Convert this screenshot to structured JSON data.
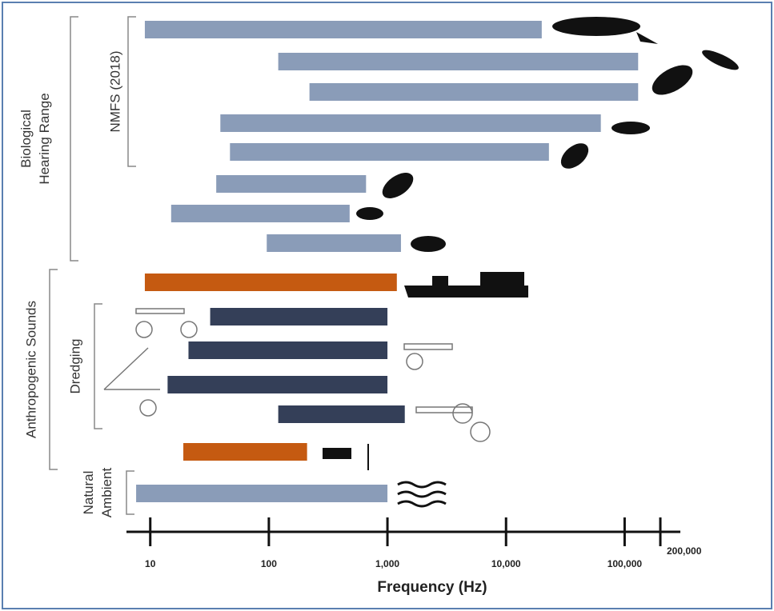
{
  "chart_data": {
    "type": "range-bar",
    "xlabel": "Frequency (Hz)",
    "log_x": true,
    "xlim": [
      6.3,
      295000
    ],
    "xticks": [
      10,
      100,
      {
        "value": 1000,
        "label": "1,000"
      },
      {
        "value": 10000,
        "label": "10,000"
      },
      {
        "value": 100000,
        "label": "100,000"
      },
      {
        "value": 200000,
        "label": "200,000"
      }
    ],
    "groups": [
      {
        "label": [
          "Biological",
          "Hearing Range"
        ],
        "subgroups": [
          {
            "label": [
              "NMFS (2018)"
            ],
            "color": "#8a9cb8",
            "low": [
              9,
              120,
              220,
              39,
              47
            ],
            "high": [
              20000,
              130000,
              130000,
              63000,
              23000
            ]
          },
          {
            "color": "#8a9cb8",
            "low": [
              36,
              15,
              96
            ],
            "high": [
              660,
              480,
              1300
            ]
          }
        ]
      },
      {
        "label": [
          "Anthropogenic Sounds"
        ],
        "subgroups": [
          {
            "color": "#c55a11",
            "low": [
              9
            ],
            "high": [
              1200
            ]
          },
          {
            "label": [
              "Dredging"
            ],
            "color": "#343f58",
            "low": [
              32,
              21,
              14,
              120
            ],
            "high": [
              1000,
              1000,
              1000,
              1400
            ]
          },
          {
            "color": "#c55a11",
            "low": [
              19
            ],
            "high": [
              210
            ]
          }
        ]
      },
      {
        "label": [
          "Natural",
          "Ambient"
        ],
        "subgroups": [
          {
            "color": "#8a9cb8",
            "low": [
              7.6
            ],
            "high": [
              1000
            ]
          }
        ]
      }
    ]
  }
}
